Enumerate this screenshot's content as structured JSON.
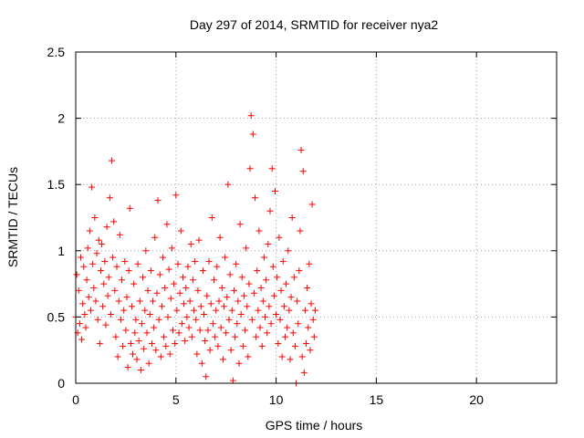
{
  "chart_data": {
    "type": "scatter",
    "title": "Day 297 of 2014, SRMTID for receiver nya2",
    "xlabel": "GPS time / hours",
    "ylabel": "SRMTID / TECUs",
    "xlim": [
      0,
      24
    ],
    "ylim": [
      0,
      2.5
    ],
    "x_ticks": [
      "0",
      "5",
      "10",
      "15",
      "20"
    ],
    "y_ticks": [
      "0",
      "0.5",
      "1",
      "1.5",
      "2",
      "2.5"
    ],
    "grid": true,
    "marker": "+",
    "color": "#ff0000",
    "series": [
      {
        "name": "SRMTID",
        "points": [
          [
            0.0,
            0.5
          ],
          [
            0.05,
            0.82
          ],
          [
            0.1,
            0.38
          ],
          [
            0.15,
            0.7
          ],
          [
            0.2,
            0.45
          ],
          [
            0.25,
            0.95
          ],
          [
            0.3,
            0.33
          ],
          [
            0.35,
            0.6
          ],
          [
            0.4,
            0.88
          ],
          [
            0.45,
            0.52
          ],
          [
            0.5,
            0.42
          ],
          [
            0.55,
            0.78
          ],
          [
            0.6,
            1.02
          ],
          [
            0.65,
            0.65
          ],
          [
            0.7,
            1.15
          ],
          [
            0.75,
            0.55
          ],
          [
            0.8,
            1.48
          ],
          [
            0.85,
            0.9
          ],
          [
            0.9,
            0.72
          ],
          [
            0.95,
            1.25
          ],
          [
            1.0,
            0.62
          ],
          [
            1.05,
            0.98
          ],
          [
            1.1,
            0.48
          ],
          [
            1.15,
            1.08
          ],
          [
            1.2,
            0.3
          ],
          [
            1.25,
            0.85
          ],
          [
            1.3,
            1.05
          ],
          [
            1.35,
            0.58
          ],
          [
            1.4,
            0.75
          ],
          [
            1.45,
            0.92
          ],
          [
            1.5,
            0.44
          ],
          [
            1.55,
            1.18
          ],
          [
            1.6,
            0.66
          ],
          [
            1.65,
            0.8
          ],
          [
            1.7,
            1.4
          ],
          [
            1.75,
            0.52
          ],
          [
            1.8,
            1.68
          ],
          [
            1.85,
            0.95
          ],
          [
            1.9,
            1.22
          ],
          [
            1.95,
            0.7
          ],
          [
            2.0,
            0.35
          ],
          [
            2.05,
            0.88
          ],
          [
            2.1,
            0.2
          ],
          [
            2.15,
            0.62
          ],
          [
            2.2,
            1.12
          ],
          [
            2.25,
            0.48
          ],
          [
            2.3,
            0.78
          ],
          [
            2.35,
            0.28
          ],
          [
            2.4,
            0.55
          ],
          [
            2.45,
            0.92
          ],
          [
            2.5,
            0.4
          ],
          [
            2.55,
            0.65
          ],
          [
            2.6,
            0.12
          ],
          [
            2.65,
            0.85
          ],
          [
            2.7,
            1.32
          ],
          [
            2.75,
            0.3
          ],
          [
            2.8,
            0.58
          ],
          [
            2.85,
            0.22
          ],
          [
            2.9,
            0.75
          ],
          [
            2.95,
            0.38
          ],
          [
            3.0,
            0.48
          ],
          [
            3.05,
            0.18
          ],
          [
            3.1,
            0.9
          ],
          [
            3.15,
            0.32
          ],
          [
            3.2,
            0.62
          ],
          [
            3.25,
            0.1
          ],
          [
            3.3,
            0.45
          ],
          [
            3.35,
            0.8
          ],
          [
            3.4,
            0.26
          ],
          [
            3.45,
            0.55
          ],
          [
            3.5,
            1.0
          ],
          [
            3.55,
            0.38
          ],
          [
            3.6,
            0.7
          ],
          [
            3.65,
            0.15
          ],
          [
            3.7,
            0.52
          ],
          [
            3.75,
            0.85
          ],
          [
            3.8,
            0.3
          ],
          [
            3.85,
            0.62
          ],
          [
            3.9,
            0.42
          ],
          [
            3.95,
            1.1
          ],
          [
            4.0,
            0.25
          ],
          [
            4.05,
            0.68
          ],
          [
            4.1,
            1.38
          ],
          [
            4.15,
            0.48
          ],
          [
            4.2,
            0.82
          ],
          [
            4.25,
            0.2
          ],
          [
            4.3,
            0.58
          ],
          [
            4.35,
            0.95
          ],
          [
            4.4,
            0.35
          ],
          [
            4.45,
            0.72
          ],
          [
            4.5,
            0.28
          ],
          [
            4.55,
            1.2
          ],
          [
            4.6,
            0.5
          ],
          [
            4.65,
            0.86
          ],
          [
            4.7,
            0.22
          ],
          [
            4.75,
            0.64
          ],
          [
            4.8,
            1.02
          ],
          [
            4.85,
            0.4
          ],
          [
            4.9,
            0.75
          ],
          [
            4.95,
            0.3
          ],
          [
            5.0,
            1.42
          ],
          [
            5.05,
            0.55
          ],
          [
            5.1,
            0.9
          ],
          [
            5.15,
            0.38
          ],
          [
            5.2,
            0.68
          ],
          [
            5.25,
            1.15
          ],
          [
            5.3,
            0.45
          ],
          [
            5.35,
            0.8
          ],
          [
            5.4,
            0.6
          ],
          [
            5.45,
            0.32
          ],
          [
            5.5,
            0.72
          ],
          [
            5.55,
            0.5
          ],
          [
            5.6,
            0.88
          ],
          [
            5.65,
            0.42
          ],
          [
            5.7,
            0.62
          ],
          [
            5.75,
            1.05
          ],
          [
            5.8,
            0.35
          ],
          [
            5.85,
            0.78
          ],
          [
            5.9,
            0.55
          ],
          [
            5.95,
            0.92
          ],
          [
            6.0,
            0.48
          ],
          [
            6.05,
            0.22
          ],
          [
            6.1,
            0.7
          ],
          [
            6.15,
            1.08
          ],
          [
            6.2,
            0.4
          ],
          [
            6.25,
            0.58
          ],
          [
            6.3,
            0.15
          ],
          [
            6.35,
            0.85
          ],
          [
            6.4,
            0.52
          ],
          [
            6.45,
            0.32
          ],
          [
            6.5,
            0.05
          ],
          [
            6.55,
            0.66
          ],
          [
            6.6,
            0.4
          ],
          [
            6.65,
            0.92
          ],
          [
            6.7,
            0.25
          ],
          [
            6.75,
            0.6
          ],
          [
            6.8,
            1.25
          ],
          [
            6.85,
            0.45
          ],
          [
            6.9,
            0.78
          ],
          [
            6.95,
            0.35
          ],
          [
            7.0,
            0.55
          ],
          [
            7.05,
            0.88
          ],
          [
            7.1,
            0.28
          ],
          [
            7.15,
            0.62
          ],
          [
            7.2,
            1.1
          ],
          [
            7.25,
            0.42
          ],
          [
            7.3,
            0.72
          ],
          [
            7.35,
            0.18
          ],
          [
            7.4,
            0.58
          ],
          [
            7.45,
            0.95
          ],
          [
            7.5,
            0.38
          ],
          [
            7.55,
            0.65
          ],
          [
            7.6,
            1.5
          ],
          [
            7.65,
            0.48
          ],
          [
            7.7,
            0.82
          ],
          [
            7.75,
            0.25
          ],
          [
            7.8,
            0.55
          ],
          [
            7.85,
            0.02
          ],
          [
            7.9,
            0.7
          ],
          [
            7.95,
            0.35
          ],
          [
            8.0,
            0.9
          ],
          [
            8.05,
            0.45
          ],
          [
            8.1,
            0.62
          ],
          [
            8.15,
            0.15
          ],
          [
            8.2,
            1.2
          ],
          [
            8.25,
            0.52
          ],
          [
            8.3,
            0.8
          ],
          [
            8.35,
            0.28
          ],
          [
            8.4,
            0.66
          ],
          [
            8.45,
            0.4
          ],
          [
            8.5,
            1.02
          ],
          [
            8.55,
            0.58
          ],
          [
            8.6,
            0.2
          ],
          [
            8.65,
            0.75
          ],
          [
            8.7,
            1.62
          ],
          [
            8.75,
            2.02
          ],
          [
            8.8,
            0.48
          ],
          [
            8.85,
            1.88
          ],
          [
            8.9,
            0.68
          ],
          [
            8.95,
            1.4
          ],
          [
            9.0,
            0.35
          ],
          [
            9.05,
            0.85
          ],
          [
            9.1,
            0.55
          ],
          [
            9.15,
            1.15
          ],
          [
            9.2,
            0.42
          ],
          [
            9.25,
            0.72
          ],
          [
            9.3,
            0.28
          ],
          [
            9.35,
            0.62
          ],
          [
            9.4,
            0.95
          ],
          [
            9.45,
            0.5
          ],
          [
            9.5,
            0.78
          ],
          [
            9.55,
            0.38
          ],
          [
            9.6,
            1.05
          ],
          [
            9.65,
            0.58
          ],
          [
            9.7,
            1.3
          ],
          [
            9.75,
            0.45
          ],
          [
            9.8,
            1.62
          ],
          [
            9.85,
            0.88
          ],
          [
            9.9,
            0.66
          ],
          [
            9.95,
            1.45
          ],
          [
            10.0,
            0.52
          ],
          [
            10.05,
            0.8
          ],
          [
            10.1,
            0.3
          ],
          [
            10.15,
            1.1
          ],
          [
            10.2,
            0.48
          ],
          [
            10.25,
            0.7
          ],
          [
            10.3,
            0.2
          ],
          [
            10.35,
            0.92
          ],
          [
            10.4,
            0.58
          ],
          [
            10.45,
            0.35
          ],
          [
            10.5,
            0.75
          ],
          [
            10.55,
            0.42
          ],
          [
            10.6,
            1.0
          ],
          [
            10.65,
            0.55
          ],
          [
            10.7,
            0.18
          ],
          [
            10.75,
            0.65
          ],
          [
            10.8,
            1.25
          ],
          [
            10.85,
            0.38
          ],
          [
            10.9,
            0.8
          ],
          [
            10.95,
            0.28
          ],
          [
            11.0,
            0.0
          ],
          [
            11.05,
            0.62
          ],
          [
            11.1,
            0.45
          ],
          [
            11.15,
            0.85
          ],
          [
            11.2,
            1.15
          ],
          [
            11.25,
            1.76
          ],
          [
            11.3,
            0.2
          ],
          [
            11.35,
            1.6
          ],
          [
            11.4,
            0.08
          ],
          [
            11.45,
            0.55
          ],
          [
            11.5,
            0.3
          ],
          [
            11.55,
            0.72
          ],
          [
            11.6,
            0.42
          ],
          [
            11.65,
            0.9
          ],
          [
            11.7,
            0.25
          ],
          [
            11.75,
            0.6
          ],
          [
            11.8,
            1.35
          ],
          [
            11.85,
            0.48
          ],
          [
            11.9,
            0.35
          ],
          [
            11.95,
            0.55
          ]
        ]
      }
    ]
  }
}
